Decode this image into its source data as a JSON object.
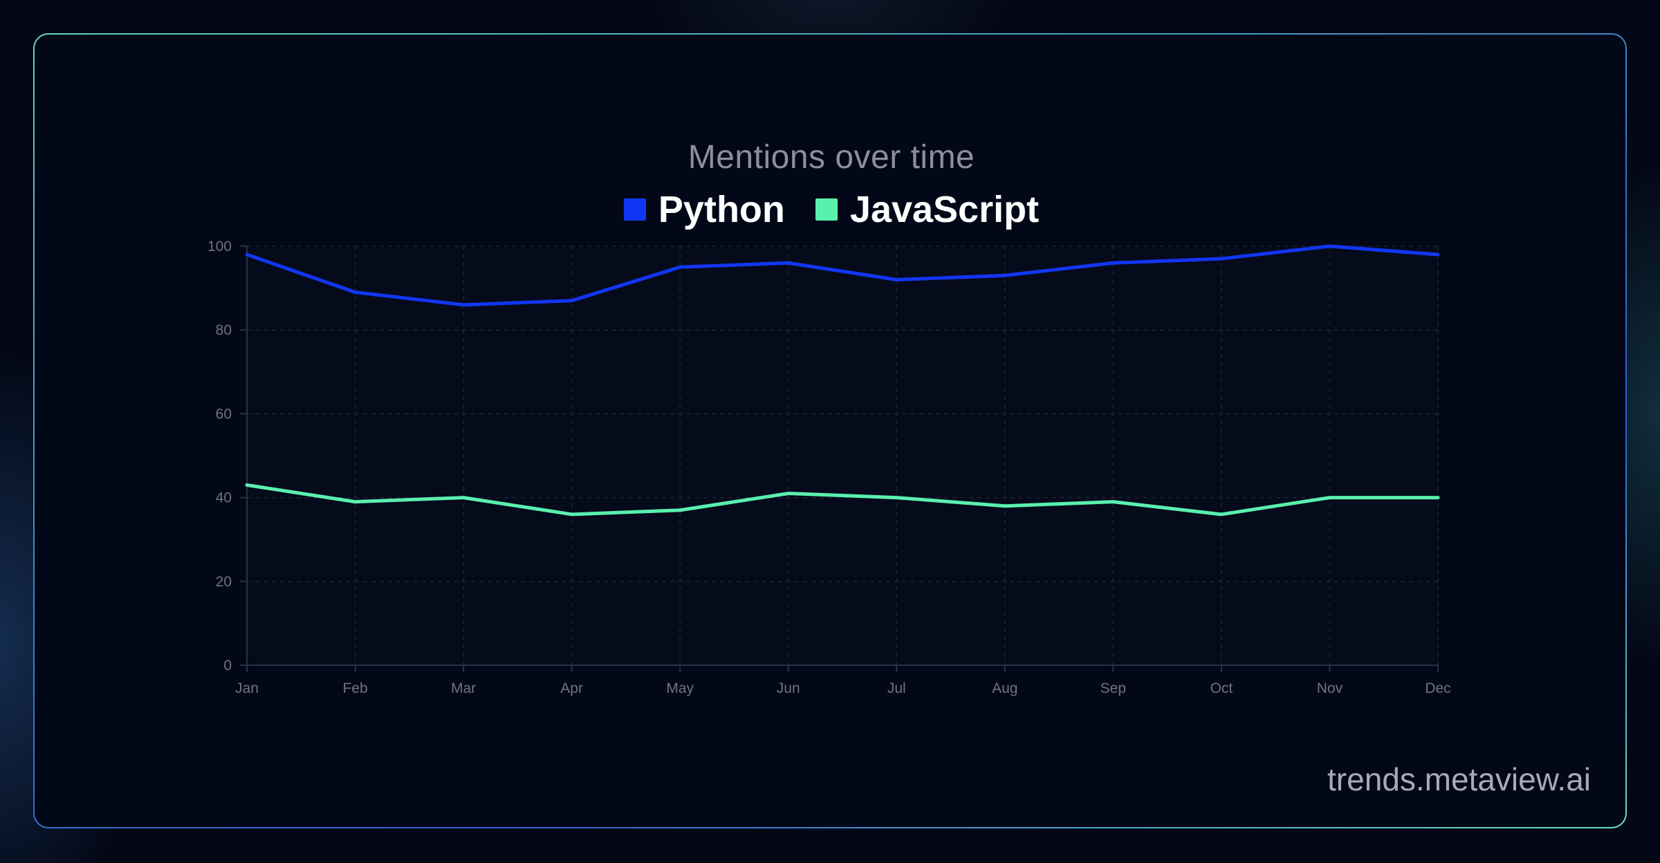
{
  "chart_data": {
    "type": "line",
    "title": "Mentions over time",
    "xlabel": "",
    "ylabel": "",
    "categories": [
      "Jan",
      "Feb",
      "Mar",
      "Apr",
      "May",
      "Jun",
      "Jul",
      "Aug",
      "Sep",
      "Oct",
      "Nov",
      "Dec"
    ],
    "ylim": [
      0,
      100
    ],
    "yticks": [
      "0",
      "20",
      "40",
      "60",
      "80",
      "100"
    ],
    "grid": true,
    "legend_position": "top",
    "series": [
      {
        "name": "Python",
        "color": "#1236f5",
        "values": [
          98,
          89,
          86,
          87,
          95,
          96,
          92,
          93,
          96,
          97,
          100,
          98
        ]
      },
      {
        "name": "JavaScript",
        "color": "#5af0ae",
        "values": [
          43,
          39,
          40,
          36,
          37,
          41,
          40,
          38,
          39,
          36,
          40,
          40
        ]
      }
    ]
  },
  "watermark": "trends.metaview.ai"
}
